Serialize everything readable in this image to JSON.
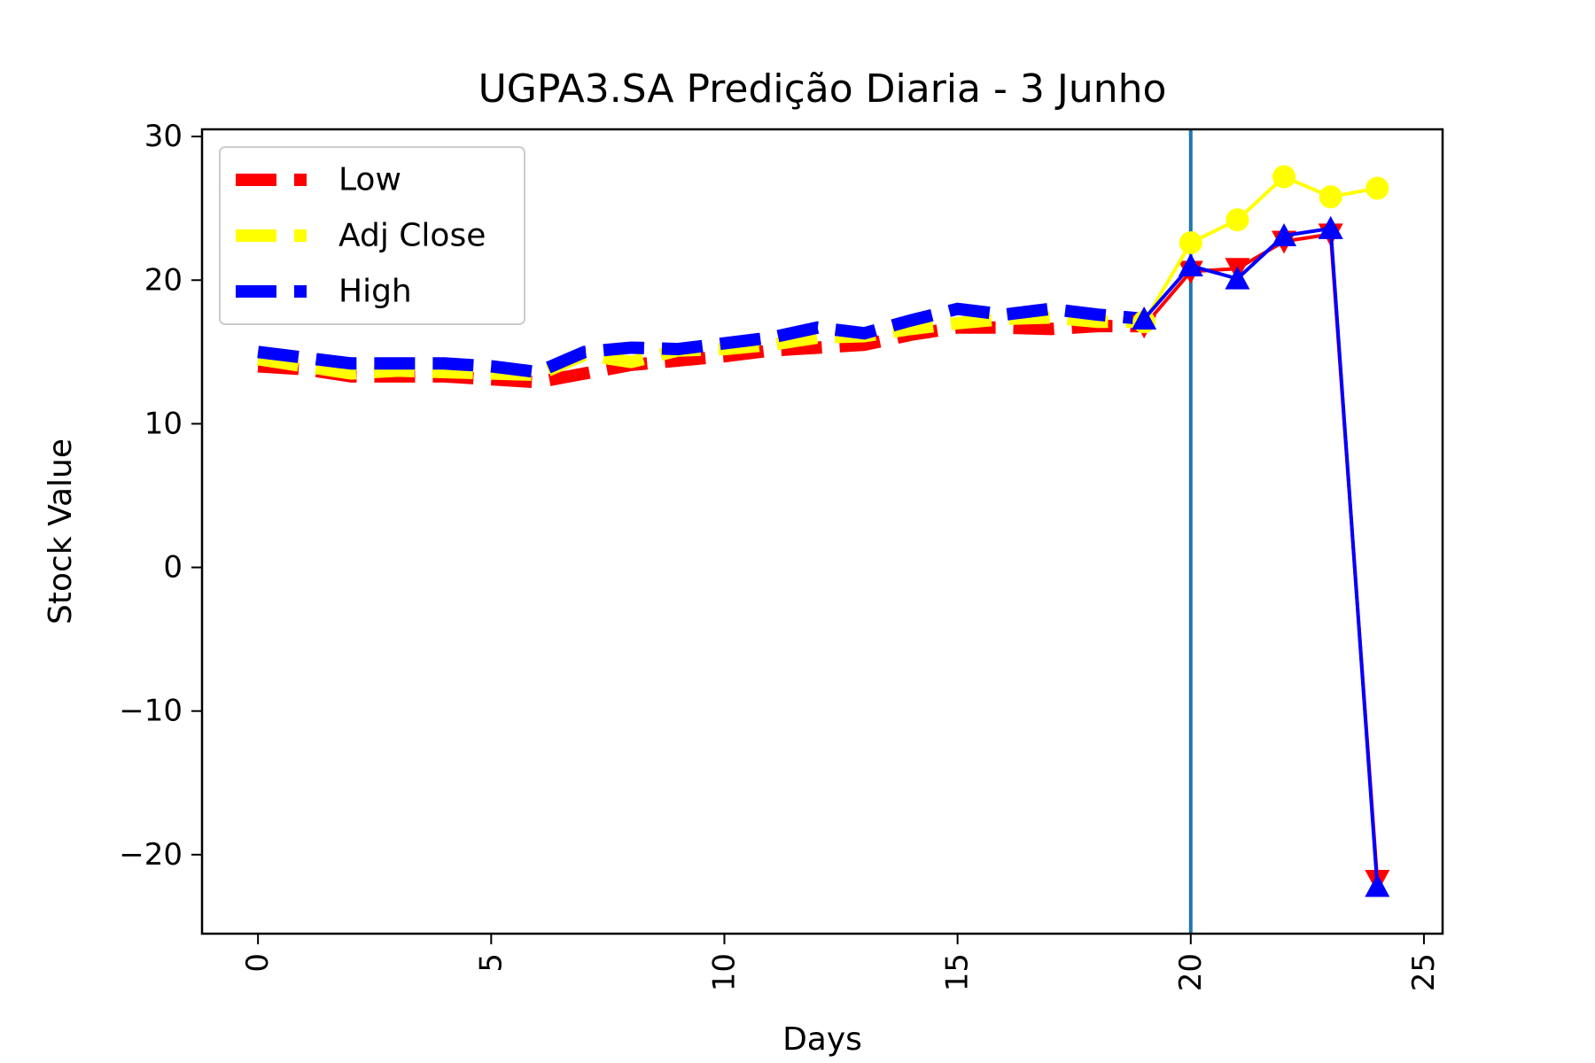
{
  "chart_data": {
    "type": "line",
    "title": "UGPA3.SA Predição Diaria - 3 Junho",
    "xlabel": "Days",
    "ylabel": "Stock Value",
    "xlim": [
      -1.2,
      25.4
    ],
    "ylim": [
      -25.5,
      30.5
    ],
    "xticks": [
      0,
      5,
      10,
      15,
      20,
      25
    ],
    "yticks": [
      -20,
      -10,
      0,
      10,
      20,
      30
    ],
    "ytick_labels": [
      "−20",
      "−10",
      "0",
      "10",
      "20",
      "30"
    ],
    "xtick_rotation": -90,
    "grid": false,
    "legend_position": "upper-left",
    "vline_x": 20,
    "vline_color": "#1f77b4",
    "series": [
      {
        "name": "Low",
        "color": "#ff0000",
        "hist_x": [
          0,
          1,
          2,
          3,
          4,
          5,
          6,
          7,
          8,
          9,
          10,
          11,
          12,
          13,
          14,
          15,
          16,
          17,
          18,
          19
        ],
        "hist_y": [
          14.0,
          13.8,
          13.3,
          13.3,
          13.3,
          13.1,
          12.9,
          13.5,
          14.1,
          14.4,
          14.7,
          15.1,
          15.3,
          15.5,
          16.2,
          16.7,
          16.7,
          16.6,
          16.8,
          16.8
        ],
        "pred_x": [
          19,
          20,
          21,
          22,
          23,
          24
        ],
        "pred_y": [
          16.8,
          20.6,
          20.8,
          22.7,
          23.2,
          -21.8
        ],
        "marker": "triangle-down"
      },
      {
        "name": "Adj Close",
        "color": "#ffff00",
        "hist_x": [
          0,
          1,
          2,
          3,
          4,
          5,
          6,
          7,
          8,
          9,
          10,
          11,
          12,
          13,
          14,
          15,
          16,
          17,
          18,
          19
        ],
        "hist_y": [
          14.5,
          14.0,
          13.5,
          13.7,
          13.6,
          13.5,
          13.4,
          14.8,
          14.3,
          15.1,
          15.2,
          15.5,
          16.0,
          16.1,
          16.6,
          17.0,
          17.3,
          17.4,
          17.1,
          17.1
        ],
        "pred_x": [
          19,
          20,
          21,
          22,
          23,
          24
        ],
        "pred_y": [
          17.1,
          22.6,
          24.2,
          27.2,
          25.8,
          26.4
        ],
        "marker": "circle"
      },
      {
        "name": "High",
        "color": "#0000ff",
        "hist_x": [
          0,
          1,
          2,
          3,
          4,
          5,
          6,
          7,
          8,
          9,
          10,
          11,
          12,
          13,
          14,
          15,
          16,
          17,
          18,
          19
        ],
        "hist_y": [
          15.0,
          14.6,
          14.2,
          14.2,
          14.2,
          14.0,
          13.6,
          15.0,
          15.3,
          15.2,
          15.6,
          16.0,
          16.7,
          16.3,
          17.2,
          18.0,
          17.6,
          18.0,
          17.6,
          17.3
        ],
        "pred_x": [
          19,
          20,
          21,
          22,
          23,
          24
        ],
        "pred_y": [
          17.3,
          21.0,
          20.1,
          23.1,
          23.6,
          -22.2
        ],
        "marker": "triangle-up"
      }
    ]
  }
}
